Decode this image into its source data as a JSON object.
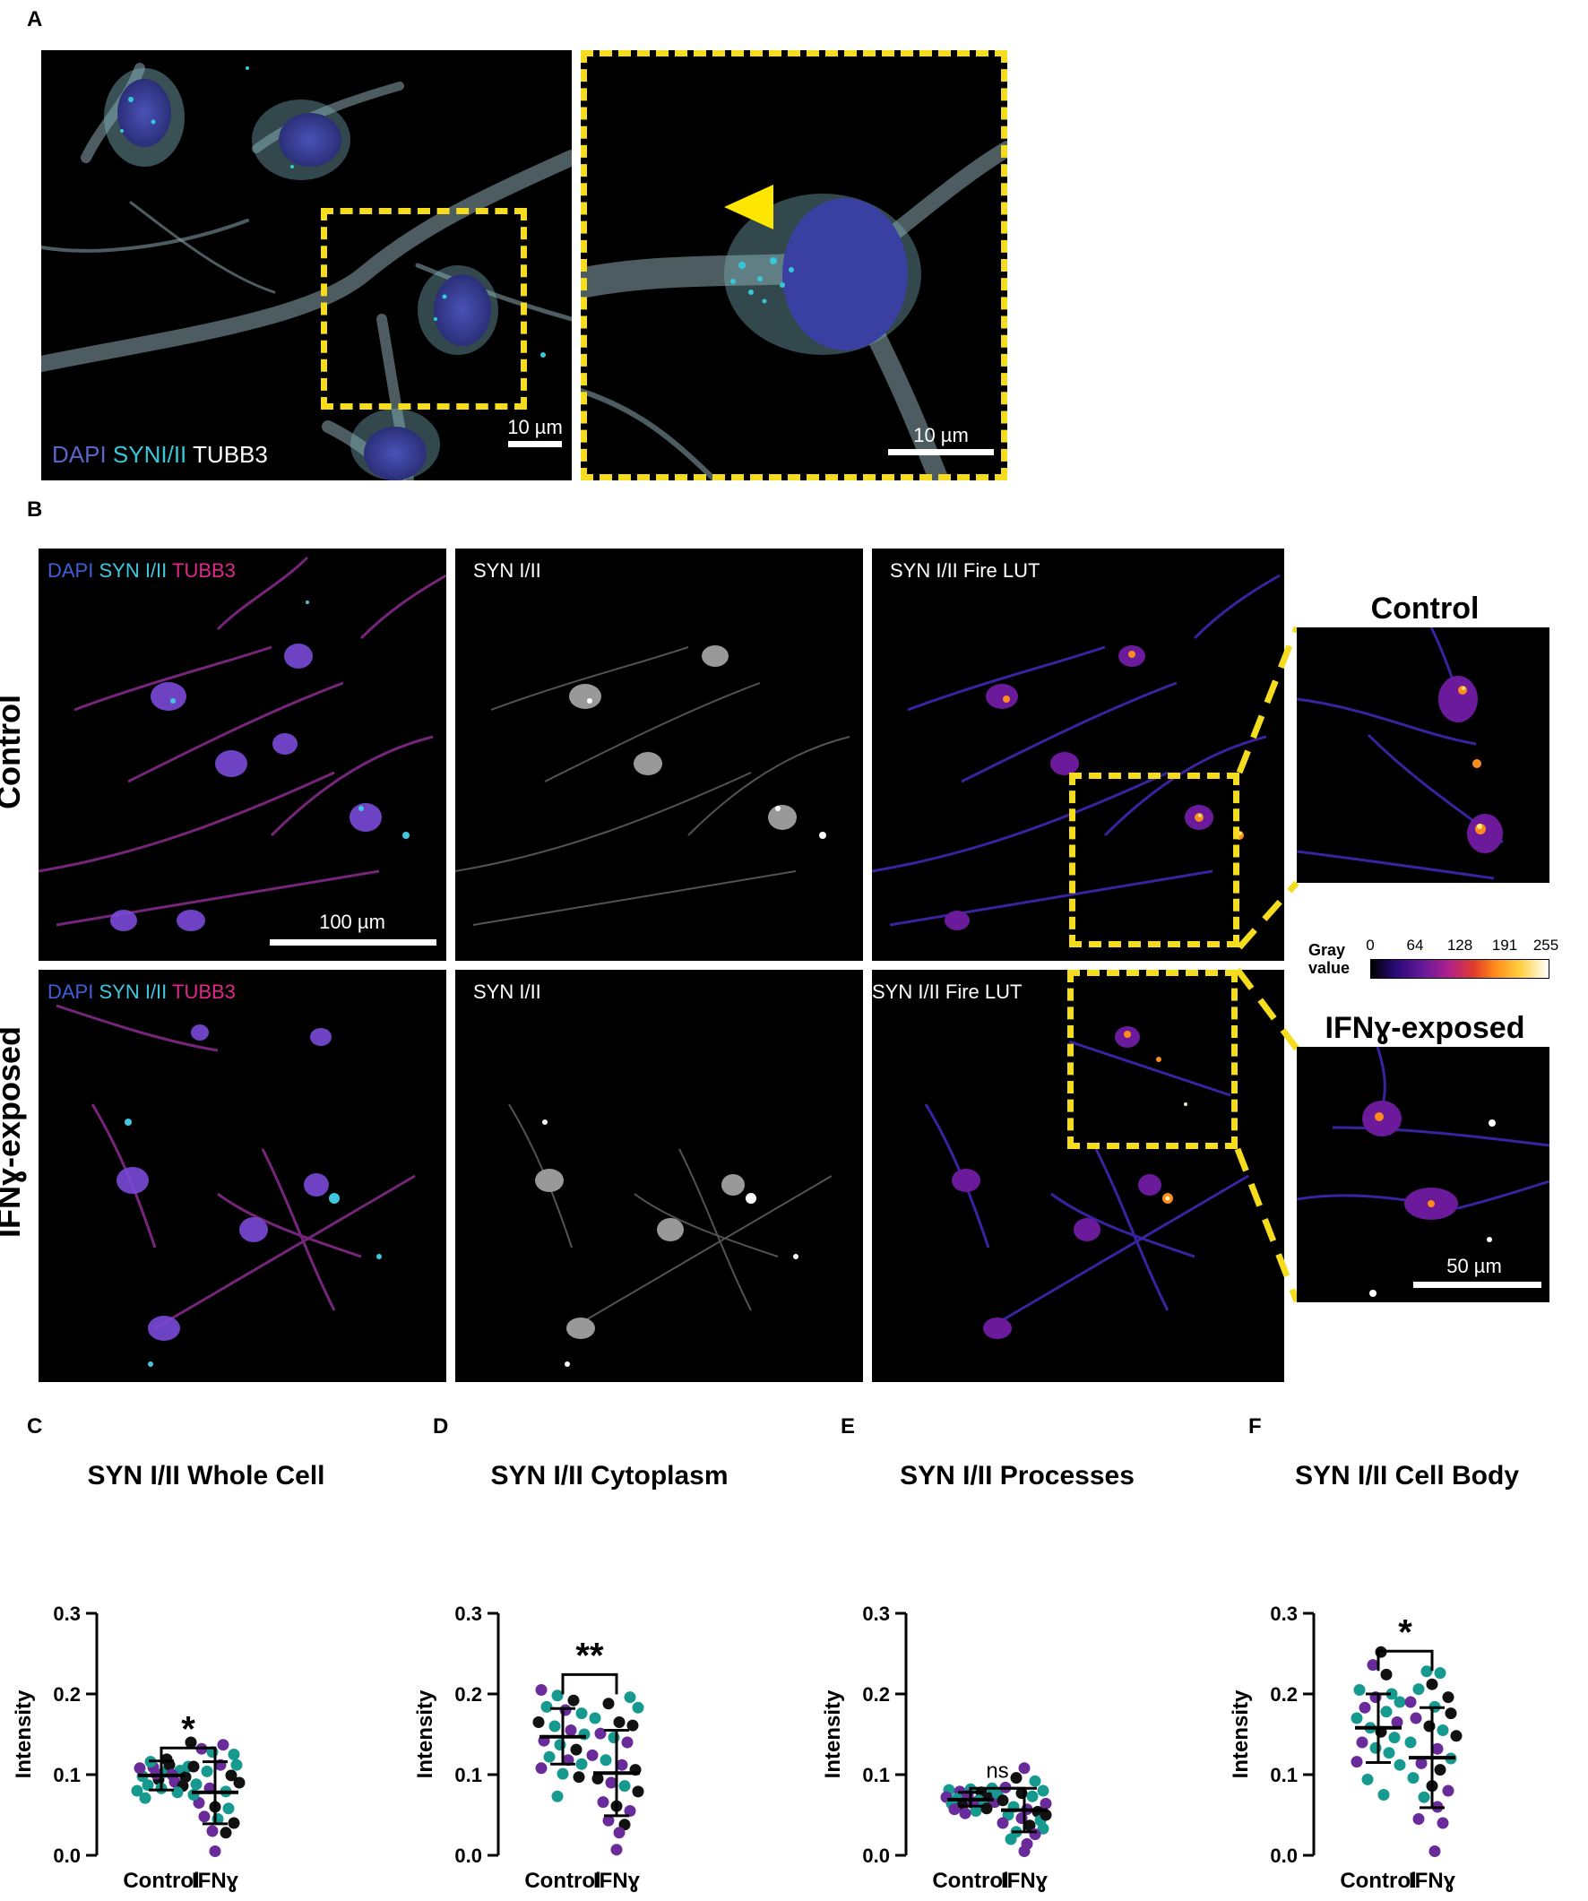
{
  "panel_letters": {
    "a": "A",
    "b": "B",
    "c": "C",
    "d": "D",
    "e": "E",
    "f": "F"
  },
  "panel_a": {
    "channel_dapi": "DAPI",
    "channel_syn": "SYNI/II",
    "channel_tubb3": "TUBB3",
    "scale_main": "10 µm",
    "scale_zoom": "10 µm",
    "colors": {
      "dapi": "#5b64c8",
      "syn": "#35c8d8",
      "tubb3": "#ffffff",
      "box": "#f5dc1e",
      "arrow": "#ffe600"
    }
  },
  "panel_b": {
    "merge_dapi": "DAPI",
    "merge_syn": "SYN I/II",
    "merge_tubb3": "TUBB3",
    "syn_label": "SYN I/II",
    "fire_label": "SYN I/II Fire LUT",
    "row_control": "Control",
    "row_ifn": "IFNɣ-exposed",
    "zoom_control": "Control",
    "zoom_ifn": "IFNɣ-exposed",
    "scale_main": "100 µm",
    "scale_zoom": "50 µm",
    "colorbar": {
      "label_line1": "Gray",
      "label_line2": "value",
      "ticks": [
        "0",
        "64",
        "128",
        "191",
        "255"
      ]
    },
    "colors": {
      "dapi": "#3f5fd8",
      "syn": "#40c8e0",
      "tubb3": "#e0288c"
    }
  },
  "chart_data": [
    {
      "panel": "C",
      "type": "scatter",
      "title": "SYN I/II Whole Cell",
      "ylabel": "Intensity",
      "xlabel": "",
      "categories": [
        "Control",
        "IFNɣ"
      ],
      "ylim": [
        0,
        0.3
      ],
      "yticks": [
        "0.0",
        "0.1",
        "0.2",
        "0.3"
      ],
      "groups": [
        {
          "name": "Control",
          "mean": 0.099,
          "sd_low": 0.081,
          "sd_high": 0.117,
          "points": [
            [
              -0.18,
              0.08,
              "t"
            ],
            [
              -0.14,
              0.098,
              "t"
            ],
            [
              -0.1,
              0.087,
              "t"
            ],
            [
              -0.06,
              0.109,
              "p"
            ],
            [
              -0.02,
              0.094,
              "k"
            ],
            [
              0.02,
              0.103,
              "t"
            ],
            [
              0.06,
              0.112,
              "k"
            ],
            [
              0.1,
              0.091,
              "p"
            ],
            [
              0.14,
              0.105,
              "t"
            ],
            [
              0.18,
              0.097,
              "k"
            ],
            [
              -0.16,
              0.108,
              "p"
            ],
            [
              -0.08,
              0.116,
              "t"
            ],
            [
              0.0,
              0.083,
              "t"
            ],
            [
              0.08,
              0.1,
              "p"
            ],
            [
              0.16,
              0.086,
              "k"
            ],
            [
              -0.12,
              0.071,
              "t"
            ],
            [
              0.04,
              0.119,
              "k"
            ],
            [
              0.12,
              0.078,
              "t"
            ],
            [
              -0.04,
              0.101,
              "p"
            ],
            [
              0.2,
              0.11,
              "t"
            ]
          ]
        },
        {
          "name": "IFNɣ",
          "mean": 0.078,
          "sd_low": 0.039,
          "sd_high": 0.116,
          "points": [
            [
              -0.18,
              0.14,
              "k"
            ],
            [
              -0.1,
              0.132,
              "p"
            ],
            [
              -0.02,
              0.128,
              "t"
            ],
            [
              0.06,
              0.137,
              "p"
            ],
            [
              0.14,
              0.125,
              "t"
            ],
            [
              -0.16,
              0.11,
              "k"
            ],
            [
              -0.06,
              0.104,
              "t"
            ],
            [
              0.04,
              0.112,
              "p"
            ],
            [
              0.12,
              0.099,
              "k"
            ],
            [
              -0.14,
              0.088,
              "t"
            ],
            [
              -0.04,
              0.083,
              "p"
            ],
            [
              0.08,
              0.079,
              "t"
            ],
            [
              0.18,
              0.09,
              "k"
            ],
            [
              -0.12,
              0.065,
              "p"
            ],
            [
              0.0,
              0.06,
              "k"
            ],
            [
              0.1,
              0.058,
              "t"
            ],
            [
              -0.08,
              0.048,
              "p"
            ],
            [
              0.02,
              0.045,
              "t"
            ],
            [
              0.14,
              0.04,
              "k"
            ],
            [
              -0.02,
              0.03,
              "p"
            ],
            [
              0.08,
              0.028,
              "k"
            ],
            [
              0.0,
              0.005,
              "p"
            ],
            [
              0.16,
              0.112,
              "t"
            ],
            [
              -0.16,
              0.075,
              "t"
            ]
          ]
        }
      ],
      "comparison": {
        "label": "*",
        "bracket_y": 0.133
      }
    },
    {
      "panel": "D",
      "type": "scatter",
      "title": "SYN I/II Cytoplasm",
      "ylabel": "Intensity",
      "xlabel": "",
      "categories": [
        "Control",
        "IFNɣ"
      ],
      "ylim": [
        0,
        0.3
      ],
      "yticks": [
        "0.0",
        "0.1",
        "0.2",
        "0.3"
      ],
      "groups": [
        {
          "name": "Control",
          "mean": 0.147,
          "sd_low": 0.113,
          "sd_high": 0.182,
          "points": [
            [
              -0.16,
              0.205,
              "p"
            ],
            [
              -0.04,
              0.198,
              "t"
            ],
            [
              0.08,
              0.192,
              "k"
            ],
            [
              -0.12,
              0.184,
              "t"
            ],
            [
              0.02,
              0.18,
              "p"
            ],
            [
              0.14,
              0.176,
              "t"
            ],
            [
              -0.18,
              0.165,
              "k"
            ],
            [
              -0.06,
              0.16,
              "t"
            ],
            [
              0.06,
              0.155,
              "p"
            ],
            [
              0.16,
              0.15,
              "t"
            ],
            [
              -0.14,
              0.142,
              "p"
            ],
            [
              -0.02,
              0.137,
              "t"
            ],
            [
              0.1,
              0.131,
              "k"
            ],
            [
              -0.1,
              0.122,
              "t"
            ],
            [
              0.04,
              0.118,
              "p"
            ],
            [
              0.14,
              0.113,
              "t"
            ],
            [
              -0.16,
              0.108,
              "p"
            ],
            [
              0.0,
              0.101,
              "t"
            ],
            [
              0.12,
              0.097,
              "k"
            ],
            [
              -0.04,
              0.073,
              "t"
            ]
          ]
        },
        {
          "name": "IFNɣ",
          "mean": 0.102,
          "sd_low": 0.049,
          "sd_high": 0.155,
          "points": [
            [
              0.1,
              0.196,
              "t"
            ],
            [
              -0.06,
              0.188,
              "k"
            ],
            [
              0.16,
              0.183,
              "t"
            ],
            [
              -0.16,
              0.17,
              "t"
            ],
            [
              0.02,
              0.165,
              "k"
            ],
            [
              0.12,
              0.161,
              "k"
            ],
            [
              -0.12,
              0.151,
              "p"
            ],
            [
              -0.02,
              0.146,
              "t"
            ],
            [
              0.08,
              0.14,
              "p"
            ],
            [
              -0.18,
              0.124,
              "p"
            ],
            [
              -0.08,
              0.118,
              "t"
            ],
            [
              0.04,
              0.112,
              "p"
            ],
            [
              0.14,
              0.106,
              "k"
            ],
            [
              -0.14,
              0.095,
              "k"
            ],
            [
              -0.04,
              0.09,
              "p"
            ],
            [
              0.06,
              0.086,
              "t"
            ],
            [
              0.16,
              0.079,
              "k"
            ],
            [
              -0.1,
              0.066,
              "p"
            ],
            [
              0.0,
              0.061,
              "k"
            ],
            [
              0.1,
              0.055,
              "p"
            ],
            [
              -0.06,
              0.043,
              "p"
            ],
            [
              0.06,
              0.038,
              "k"
            ],
            [
              0.02,
              0.028,
              "p"
            ],
            [
              0.0,
              0.007,
              "p"
            ]
          ]
        }
      ],
      "comparison": {
        "label": "**",
        "bracket_y": 0.224
      }
    },
    {
      "panel": "E",
      "type": "scatter",
      "title": "SYN I/II Processes",
      "ylabel": "Intensity",
      "xlabel": "",
      "categories": [
        "Control",
        "IFNɣ"
      ],
      "ylim": [
        0,
        0.3
      ],
      "yticks": [
        "0.0",
        "0.1",
        "0.2",
        "0.3"
      ],
      "groups": [
        {
          "name": "Control",
          "mean": 0.069,
          "sd_low": 0.061,
          "sd_high": 0.078,
          "points": [
            [
              -0.16,
              0.081,
              "t"
            ],
            [
              -0.08,
              0.079,
              "p"
            ],
            [
              0.0,
              0.082,
              "t"
            ],
            [
              0.08,
              0.078,
              "k"
            ],
            [
              0.16,
              0.083,
              "t"
            ],
            [
              -0.18,
              0.072,
              "p"
            ],
            [
              -0.1,
              0.07,
              "t"
            ],
            [
              -0.02,
              0.074,
              "p"
            ],
            [
              0.06,
              0.068,
              "t"
            ],
            [
              0.14,
              0.071,
              "k"
            ],
            [
              -0.14,
              0.064,
              "t"
            ],
            [
              -0.06,
              0.062,
              "k"
            ],
            [
              0.02,
              0.065,
              "p"
            ],
            [
              0.1,
              0.061,
              "t"
            ],
            [
              0.18,
              0.066,
              "p"
            ],
            [
              -0.12,
              0.057,
              "p"
            ],
            [
              0.04,
              0.055,
              "t"
            ],
            [
              0.12,
              0.058,
              "k"
            ],
            [
              -0.04,
              0.052,
              "p"
            ],
            [
              0.2,
              0.077,
              "t"
            ]
          ]
        },
        {
          "name": "IFNɣ",
          "mean": 0.056,
          "sd_low": 0.029,
          "sd_high": 0.083,
          "points": [
            [
              0.0,
              0.108,
              "p"
            ],
            [
              -0.06,
              0.096,
              "k"
            ],
            [
              0.08,
              0.092,
              "t"
            ],
            [
              -0.14,
              0.084,
              "p"
            ],
            [
              0.14,
              0.08,
              "t"
            ],
            [
              -0.02,
              0.077,
              "k"
            ],
            [
              0.06,
              0.073,
              "t"
            ],
            [
              -0.16,
              0.068,
              "k"
            ],
            [
              0.16,
              0.064,
              "p"
            ],
            [
              -0.08,
              0.06,
              "t"
            ],
            [
              0.02,
              0.057,
              "p"
            ],
            [
              0.1,
              0.054,
              "k"
            ],
            [
              -0.12,
              0.05,
              "t"
            ],
            [
              -0.02,
              0.046,
              "p"
            ],
            [
              0.12,
              0.043,
              "t"
            ],
            [
              -0.16,
              0.04,
              "p"
            ],
            [
              0.04,
              0.037,
              "k"
            ],
            [
              0.14,
              0.033,
              "t"
            ],
            [
              -0.06,
              0.029,
              "t"
            ],
            [
              0.08,
              0.026,
              "p"
            ],
            [
              -0.1,
              0.02,
              "t"
            ],
            [
              0.02,
              0.014,
              "p"
            ],
            [
              0.0,
              0.005,
              "p"
            ],
            [
              0.16,
              0.05,
              "k"
            ]
          ]
        }
      ],
      "comparison": {
        "label": "ns",
        "bracket_y": 0.083
      }
    },
    {
      "panel": "F",
      "type": "scatter",
      "title": "SYN I/II Cell Body",
      "ylabel": "Intensity",
      "xlabel": "",
      "categories": [
        "Control",
        "IFNɣ"
      ],
      "ylim": [
        0,
        0.3
      ],
      "yticks": [
        "0.0",
        "0.1",
        "0.2",
        "0.3"
      ],
      "groups": [
        {
          "name": "Control",
          "mean": 0.158,
          "sd_low": 0.115,
          "sd_high": 0.2,
          "points": [
            [
              0.02,
              0.252,
              "k"
            ],
            [
              -0.04,
              0.236,
              "p"
            ],
            [
              0.06,
              0.224,
              "k"
            ],
            [
              -0.14,
              0.205,
              "t"
            ],
            [
              0.1,
              0.2,
              "t"
            ],
            [
              -0.02,
              0.196,
              "p"
            ],
            [
              0.16,
              0.19,
              "t"
            ],
            [
              -0.1,
              0.183,
              "p"
            ],
            [
              0.06,
              0.178,
              "t"
            ],
            [
              -0.16,
              0.17,
              "t"
            ],
            [
              0.14,
              0.165,
              "p"
            ],
            [
              -0.06,
              0.158,
              "t"
            ],
            [
              0.02,
              0.153,
              "k"
            ],
            [
              0.12,
              0.146,
              "t"
            ],
            [
              -0.12,
              0.14,
              "p"
            ],
            [
              -0.02,
              0.133,
              "t"
            ],
            [
              0.08,
              0.127,
              "t"
            ],
            [
              -0.16,
              0.116,
              "p"
            ],
            [
              0.16,
              0.112,
              "t"
            ],
            [
              -0.08,
              0.094,
              "t"
            ],
            [
              0.04,
              0.075,
              "t"
            ]
          ]
        },
        {
          "name": "IFNɣ",
          "mean": 0.121,
          "sd_low": 0.059,
          "sd_high": 0.183,
          "points": [
            [
              -0.04,
              0.228,
              "t"
            ],
            [
              0.06,
              0.226,
              "t"
            ],
            [
              -0.1,
              0.206,
              "t"
            ],
            [
              0.0,
              0.212,
              "k"
            ],
            [
              0.12,
              0.196,
              "k"
            ],
            [
              -0.16,
              0.19,
              "p"
            ],
            [
              0.02,
              0.184,
              "t"
            ],
            [
              0.14,
              0.176,
              "k"
            ],
            [
              -0.12,
              0.17,
              "p"
            ],
            [
              -0.02,
              0.16,
              "k"
            ],
            [
              0.08,
              0.155,
              "t"
            ],
            [
              0.18,
              0.148,
              "k"
            ],
            [
              -0.16,
              0.14,
              "t"
            ],
            [
              0.04,
              0.132,
              "p"
            ],
            [
              0.14,
              0.12,
              "t"
            ],
            [
              -0.08,
              0.114,
              "p"
            ],
            [
              0.06,
              0.106,
              "k"
            ],
            [
              -0.14,
              0.096,
              "t"
            ],
            [
              0.0,
              0.086,
              "k"
            ],
            [
              0.12,
              0.08,
              "p"
            ],
            [
              -0.06,
              0.072,
              "t"
            ],
            [
              0.04,
              0.06,
              "p"
            ],
            [
              -0.1,
              0.045,
              "p"
            ],
            [
              0.08,
              0.04,
              "p"
            ],
            [
              0.02,
              0.005,
              "p"
            ]
          ]
        }
      ],
      "comparison": {
        "label": "*",
        "bracket_y": 0.253
      }
    }
  ],
  "dot_colors": {
    "t": "#16998f",
    "p": "#6a2b9a",
    "k": "#111111"
  }
}
